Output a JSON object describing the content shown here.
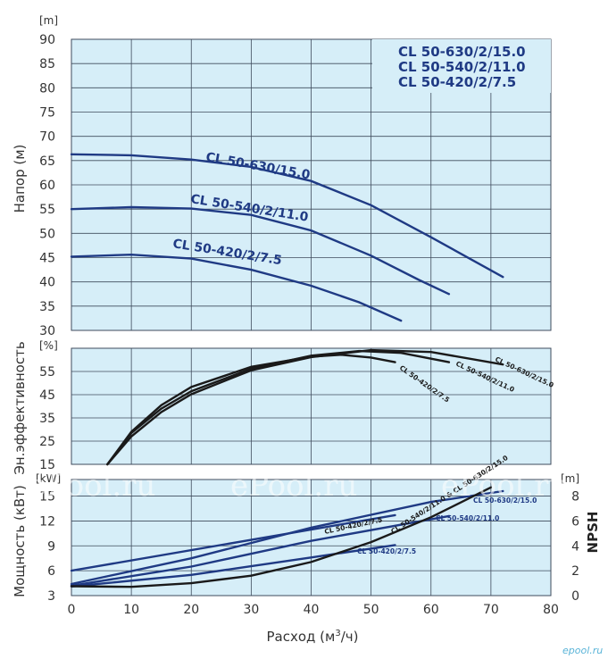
{
  "chart_data": [
    {
      "type": "line",
      "unit_label": "[m]",
      "ylabel": "Напор (м)",
      "xlim": [
        0,
        80
      ],
      "ylim": [
        30,
        90
      ],
      "yticks": [
        "30",
        "35",
        "40",
        "45",
        "50",
        "55",
        "60",
        "65",
        "70",
        "75",
        "80",
        "85",
        "90"
      ],
      "grid": true,
      "models_legend": [
        "CL 50-630/2/15.0",
        "CL 50-540/2/11.0",
        "CL 50-420/2/7.5"
      ],
      "series": [
        {
          "name": "CL 50-630/15.0",
          "color": "#1f3a84",
          "points": [
            [
              0,
              66.3
            ],
            [
              10,
              66.1
            ],
            [
              20,
              65.2
            ],
            [
              30,
              63.7
            ],
            [
              40,
              60.8
            ],
            [
              50,
              55.8
            ],
            [
              60,
              49.2
            ],
            [
              72,
              41.0
            ]
          ]
        },
        {
          "name": "CL 50-540/2/11.0",
          "color": "#1f3a84",
          "points": [
            [
              0,
              55.0
            ],
            [
              10,
              55.4
            ],
            [
              20,
              55.1
            ],
            [
              30,
              53.8
            ],
            [
              40,
              50.6
            ],
            [
              50,
              45.4
            ],
            [
              58,
              40.4
            ],
            [
              63,
              37.5
            ]
          ]
        },
        {
          "name": "CL 50-420/2/7.5",
          "color": "#1f3a84",
          "points": [
            [
              0,
              45.2
            ],
            [
              10,
              45.6
            ],
            [
              20,
              44.8
            ],
            [
              30,
              42.5
            ],
            [
              40,
              39.2
            ],
            [
              48,
              35.8
            ],
            [
              55,
              32.0
            ]
          ]
        }
      ]
    },
    {
      "type": "line",
      "unit_label": "[%]",
      "ylabel": "Эн.эффективность",
      "xlim": [
        0,
        80
      ],
      "ylim": [
        15,
        65
      ],
      "yticks": [
        "15",
        "25",
        "35",
        "45",
        "55"
      ],
      "grid": true,
      "series": [
        {
          "name": "CL 50-630/2/15.0",
          "color": "#1a1a1a",
          "points": [
            [
              6,
              15.0
            ],
            [
              10,
              27.0
            ],
            [
              15,
              37.5
            ],
            [
              20,
              45.2
            ],
            [
              30,
              55.5
            ],
            [
              40,
              61.2
            ],
            [
              50,
              64.2
            ],
            [
              60,
              63.4
            ],
            [
              72,
              58.0
            ]
          ]
        },
        {
          "name": "CL 50-540/2/11.0",
          "color": "#1a1a1a",
          "points": [
            [
              6,
              15.0
            ],
            [
              10,
              28.5
            ],
            [
              15,
              39.0
            ],
            [
              20,
              46.5
            ],
            [
              30,
              56.2
            ],
            [
              40,
              61.8
            ],
            [
              48,
              63.8
            ],
            [
              55,
              63.0
            ],
            [
              63,
              59.0
            ]
          ]
        },
        {
          "name": "CL 50-420/2/7.5",
          "color": "#1a1a1a",
          "points": [
            [
              6,
              15.0
            ],
            [
              10,
              29.0
            ],
            [
              15,
              40.5
            ],
            [
              20,
              48.3
            ],
            [
              30,
              57.0
            ],
            [
              40,
              61.4
            ],
            [
              45,
              62.2
            ],
            [
              50,
              61.0
            ],
            [
              54,
              59.0
            ]
          ]
        }
      ]
    },
    {
      "type": "line",
      "unit_label_left": "[kW]",
      "unit_label_right": "[m]",
      "ylabel": "Мощность (кВт)",
      "y2label": "NPSH",
      "xlabel_text": "Расход (м",
      "xlabel_sup": "3",
      "xlabel_end": "/ч)",
      "xlim": [
        0,
        80
      ],
      "xticks": [
        "0",
        "10",
        "20",
        "30",
        "40",
        "50",
        "60",
        "70",
        "80"
      ],
      "ylim": [
        3,
        17
      ],
      "yticks": [
        "3",
        "6",
        "9",
        "12",
        "15"
      ],
      "y2lim": [
        0,
        9.33
      ],
      "y2ticks": [
        "0",
        "2",
        "4",
        "6",
        "8"
      ],
      "grid": true,
      "power_series": [
        {
          "name": "CL 50-420/2/7.5",
          "color": "#1f3a84",
          "points": [
            [
              0,
              6.0
            ],
            [
              54,
              12.7
            ]
          ]
        },
        {
          "name": "CL 50-420/2/7.5",
          "color": "#1f3a84",
          "points": [
            [
              0,
              4.1
            ],
            [
              20,
              5.5
            ],
            [
              40,
              7.6
            ],
            [
              54,
              9.1
            ]
          ]
        },
        {
          "name": "CL 50-540/2/11.0",
          "color": "#1f3a84",
          "points": [
            [
              0,
              4.2
            ],
            [
              20,
              6.5
            ],
            [
              40,
              9.6
            ],
            [
              63,
              12.6
            ]
          ]
        },
        {
          "name": "CL 50-630/2/15.0",
          "color": "#1f3a84",
          "points": [
            [
              0,
              4.4
            ],
            [
              20,
              7.5
            ],
            [
              40,
              11.2
            ],
            [
              60,
              14.3
            ],
            [
              72,
              15.6
            ]
          ]
        }
      ],
      "npsh_series": [
        {
          "name": "CL 50-540/2/11.0 & CL 50-630/2/15.0",
          "color": "#1a1a1a",
          "points": [
            [
              0,
              0.75
            ],
            [
              10,
              0.7
            ],
            [
              20,
              1.0
            ],
            [
              30,
              1.6
            ],
            [
              40,
              2.7
            ],
            [
              50,
              4.3
            ],
            [
              60,
              6.3
            ],
            [
              70,
              8.7
            ]
          ]
        }
      ]
    }
  ],
  "watermark": {
    "text": "ePool.ru",
    "corner": "epool.ru"
  }
}
